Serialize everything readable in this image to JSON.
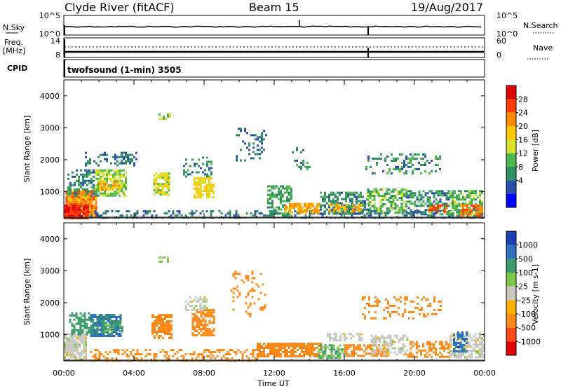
{
  "header": {
    "title_left": "Clyde River (fitACF)",
    "title_mid": "Beam 15",
    "title_right": "19/Aug/2017"
  },
  "top_panels": {
    "nsky_label": "N.Sky",
    "nsky_ticks": [
      "10^5",
      "10^0"
    ],
    "nsearch_label": "N.Search",
    "nsearch_ticks": [
      "10^5",
      "10^0"
    ],
    "freq_label": "Freq.",
    "freq_unit": "[MHz]",
    "freq_ticks": [
      "14",
      "8"
    ],
    "nave_label": "Nave",
    "nave_ticks": [
      "60",
      "0"
    ],
    "cpid_label": "CPID",
    "cpid_text": "twofsound (1-min) 3505"
  },
  "colorbars": {
    "power": {
      "label": "Power [dB]",
      "ticks": [
        "28",
        "24",
        "20",
        "16",
        "12",
        "8",
        "4"
      ],
      "colors": [
        "#e00000",
        "#ff3b00",
        "#ff8c00",
        "#ffc800",
        "#d8e02a",
        "#4fb84a",
        "#2f8f62",
        "#2a4fa8",
        "#0000ff"
      ]
    },
    "velocity": {
      "label": "Velocity [m s-1]",
      "ticks": [
        "1000",
        "500",
        "100",
        "25",
        "-25",
        "-100",
        "-500",
        "-1000"
      ],
      "colors": [
        "#1a3fb0",
        "#2f6fbf",
        "#3a9a6a",
        "#7dc84a",
        "#c8c8c0",
        "#ffb000",
        "#ff8a1a",
        "#ff4a1a",
        "#e00000"
      ]
    }
  },
  "chart_data": [
    {
      "type": "heatmap",
      "title": "Power",
      "xlabel": "",
      "ylabel": "Slant Range [km]",
      "x_ticks": [
        "00:00",
        "04:00",
        "08:00",
        "12:00",
        "16:00",
        "20:00",
        "00:00"
      ],
      "y_ticks": [
        "4000",
        "3000",
        "2000",
        "1000"
      ],
      "xlim_hours": [
        0,
        24
      ],
      "ylim_km": [
        180,
        4500
      ],
      "legend": "right",
      "regions": [
        {
          "x0": 0.1,
          "x1": 1.8,
          "y0": 200,
          "y1": 1050,
          "value": 24,
          "density": 0.95
        },
        {
          "x0": 0.0,
          "x1": 1.4,
          "y0": 200,
          "y1": 600,
          "value": 30,
          "density": 0.95
        },
        {
          "x0": 0.2,
          "x1": 1.9,
          "y0": 900,
          "y1": 1700,
          "value": 8,
          "density": 0.45
        },
        {
          "x0": 1.8,
          "x1": 3.6,
          "y0": 900,
          "y1": 1700,
          "value": 14,
          "density": 0.7
        },
        {
          "x0": 2.0,
          "x1": 3.2,
          "y0": 1050,
          "y1": 1350,
          "value": 22,
          "density": 0.6
        },
        {
          "x0": 1.2,
          "x1": 4.2,
          "y0": 1800,
          "y1": 2250,
          "value": 6,
          "density": 0.35
        },
        {
          "x0": 5.1,
          "x1": 6.0,
          "y0": 900,
          "y1": 1600,
          "value": 16,
          "density": 0.75
        },
        {
          "x0": 5.4,
          "x1": 6.1,
          "y0": 3300,
          "y1": 3450,
          "value": 14,
          "density": 0.6
        },
        {
          "x0": 6.8,
          "x1": 8.4,
          "y0": 1500,
          "y1": 2100,
          "value": 8,
          "density": 0.3
        },
        {
          "x0": 7.4,
          "x1": 8.6,
          "y0": 850,
          "y1": 1450,
          "value": 18,
          "density": 0.7
        },
        {
          "x0": 1.5,
          "x1": 24.0,
          "y0": 200,
          "y1": 420,
          "value": 6,
          "density": 0.35
        },
        {
          "x0": 11.6,
          "x1": 13.0,
          "y0": 250,
          "y1": 1200,
          "value": 10,
          "density": 0.55
        },
        {
          "x0": 12.6,
          "x1": 14.6,
          "y0": 350,
          "y1": 650,
          "value": 22,
          "density": 0.75
        },
        {
          "x0": 14.6,
          "x1": 17.4,
          "y0": 300,
          "y1": 1000,
          "value": 8,
          "density": 0.6
        },
        {
          "x0": 15.0,
          "x1": 17.0,
          "y0": 420,
          "y1": 620,
          "value": 22,
          "density": 0.6
        },
        {
          "x0": 17.3,
          "x1": 19.5,
          "y0": 350,
          "y1": 1100,
          "value": 12,
          "density": 0.5
        },
        {
          "x0": 19.5,
          "x1": 22.0,
          "y0": 300,
          "y1": 1050,
          "value": 8,
          "density": 0.55
        },
        {
          "x0": 20.8,
          "x1": 21.8,
          "y0": 350,
          "y1": 600,
          "value": 26,
          "density": 0.7
        },
        {
          "x0": 22.0,
          "x1": 23.9,
          "y0": 300,
          "y1": 1050,
          "value": 12,
          "density": 0.65
        },
        {
          "x0": 22.6,
          "x1": 23.9,
          "y0": 250,
          "y1": 600,
          "value": 26,
          "density": 0.7
        },
        {
          "x0": 9.8,
          "x1": 11.6,
          "y0": 2000,
          "y1": 3000,
          "value": 6,
          "density": 0.2
        },
        {
          "x0": 13.0,
          "x1": 14.2,
          "y0": 1700,
          "y1": 2400,
          "value": 8,
          "density": 0.2
        },
        {
          "x0": 17.2,
          "x1": 21.5,
          "y0": 1600,
          "y1": 2200,
          "value": 8,
          "density": 0.25
        }
      ]
    },
    {
      "type": "heatmap",
      "title": "Velocity",
      "xlabel": "Time UT",
      "ylabel": "Slant Range [km]",
      "x_ticks": [
        "00:00",
        "04:00",
        "08:00",
        "12:00",
        "16:00",
        "20:00",
        "00:00"
      ],
      "y_ticks": [
        "4000",
        "3000",
        "2000",
        "1000"
      ],
      "xlim_hours": [
        0,
        24
      ],
      "ylim_km": [
        180,
        4500
      ],
      "legend": "right",
      "regions": [
        {
          "x0": 0.0,
          "x1": 1.3,
          "y0": 200,
          "y1": 1050,
          "value": 0,
          "density": 0.85
        },
        {
          "x0": 0.3,
          "x1": 1.8,
          "y0": 1000,
          "y1": 1700,
          "value": 300,
          "density": 0.45
        },
        {
          "x0": 1.5,
          "x1": 3.3,
          "y0": 950,
          "y1": 1650,
          "value": 600,
          "density": 0.75
        },
        {
          "x0": 2.2,
          "x1": 3.4,
          "y0": 1100,
          "y1": 1400,
          "value": 150,
          "density": 0.5
        },
        {
          "x0": 5.0,
          "x1": 6.1,
          "y0": 900,
          "y1": 1650,
          "value": -200,
          "density": 0.7
        },
        {
          "x0": 7.3,
          "x1": 8.6,
          "y0": 950,
          "y1": 1800,
          "value": -250,
          "density": 0.75
        },
        {
          "x0": 5.4,
          "x1": 6.0,
          "y0": 3300,
          "y1": 3450,
          "value": 40,
          "density": 0.5
        },
        {
          "x0": 6.9,
          "x1": 8.2,
          "y0": 1800,
          "y1": 2200,
          "value": 0,
          "density": 0.5
        },
        {
          "x0": 1.5,
          "x1": 11.0,
          "y0": 200,
          "y1": 550,
          "value": -120,
          "density": 0.4
        },
        {
          "x0": 11.0,
          "x1": 14.7,
          "y0": 300,
          "y1": 750,
          "value": -200,
          "density": 0.8
        },
        {
          "x0": 14.5,
          "x1": 16.0,
          "y0": 300,
          "y1": 700,
          "value": 80,
          "density": 0.7
        },
        {
          "x0": 16.0,
          "x1": 18.5,
          "y0": 350,
          "y1": 700,
          "value": -150,
          "density": 0.65
        },
        {
          "x0": 17.5,
          "x1": 19.6,
          "y0": 400,
          "y1": 1000,
          "value": 0,
          "density": 0.55
        },
        {
          "x0": 19.6,
          "x1": 22.0,
          "y0": 300,
          "y1": 800,
          "value": -300,
          "density": 0.5
        },
        {
          "x0": 22.0,
          "x1": 24.0,
          "y0": 300,
          "y1": 1050,
          "value": 0,
          "density": 0.7
        },
        {
          "x0": 22.2,
          "x1": 23.0,
          "y0": 500,
          "y1": 1100,
          "value": 700,
          "density": 0.5
        },
        {
          "x0": 15.0,
          "x1": 17.0,
          "y0": 800,
          "y1": 1050,
          "value": 0,
          "density": 0.5
        },
        {
          "x0": 9.5,
          "x1": 11.5,
          "y0": 1600,
          "y1": 3000,
          "value": -150,
          "density": 0.18
        },
        {
          "x0": 17.0,
          "x1": 21.5,
          "y0": 1500,
          "y1": 2200,
          "value": -200,
          "density": 0.22
        }
      ]
    }
  ]
}
